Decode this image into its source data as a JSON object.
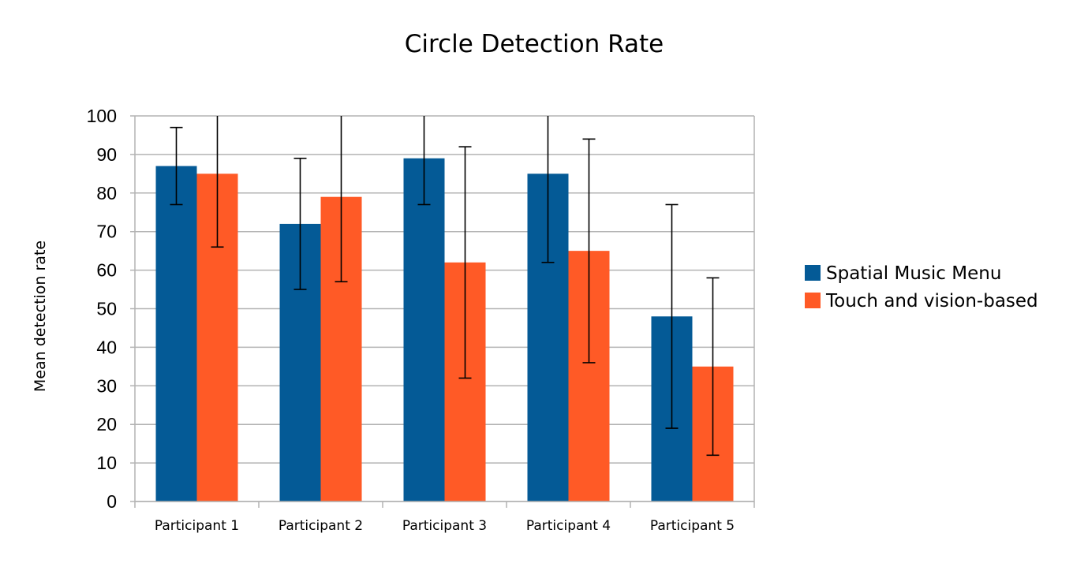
{
  "chart_data": {
    "type": "bar",
    "title": "Circle Detection Rate",
    "xlabel": "",
    "ylabel": "Mean detection rate",
    "ylim": [
      0,
      100
    ],
    "yticks": [
      0,
      10,
      20,
      30,
      40,
      50,
      60,
      70,
      80,
      90,
      100
    ],
    "grid": true,
    "legend_position": "right",
    "categories": [
      "Participant 1",
      "Participant 2",
      "Participant 3",
      "Participant 4",
      "Participant 5"
    ],
    "series": [
      {
        "name": "Spatial Music Menu",
        "color": "#045a96",
        "values": [
          87,
          72,
          89,
          85,
          48
        ],
        "error_low": [
          77,
          55,
          77,
          62,
          19
        ],
        "error_high": [
          97,
          89,
          100,
          100,
          77
        ]
      },
      {
        "name": "Touch and vision-based",
        "color": "#ff5a26",
        "values": [
          85,
          79,
          62,
          65,
          35
        ],
        "error_low": [
          66,
          57,
          32,
          36,
          12
        ],
        "error_high": [
          100,
          100,
          92,
          94,
          58
        ]
      }
    ]
  }
}
